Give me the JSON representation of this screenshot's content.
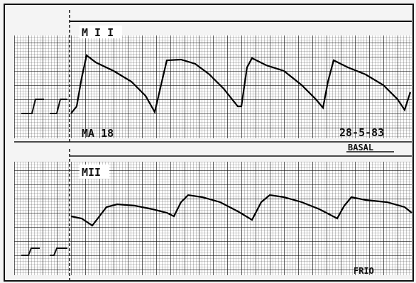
{
  "panels": [
    {
      "lead": "M I I",
      "patient": "MA 18",
      "date": "28-5-83",
      "condition": "BASAL"
    },
    {
      "lead": "MII",
      "condition": "FRIO"
    }
  ]
}
